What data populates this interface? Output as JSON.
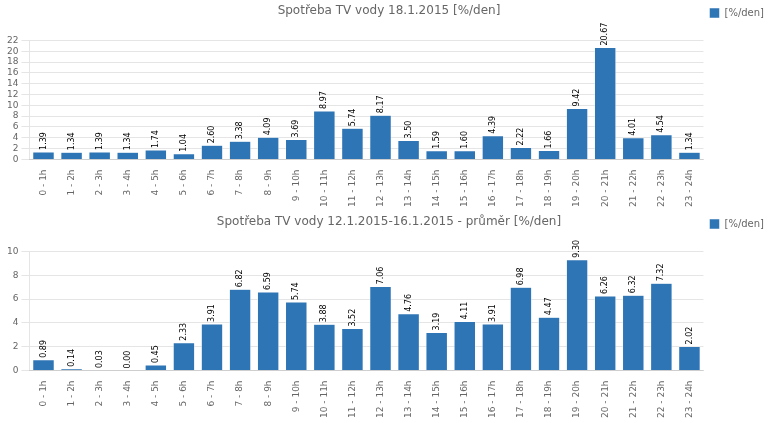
{
  "chart_data": [
    {
      "type": "bar",
      "title": "Spotřeba TV vody 18.1.2015 [%/den]",
      "categories": [
        "0 - 1h",
        "1 - 2h",
        "2 - 3h",
        "3 - 4h",
        "4 - 5h",
        "5 - 6h",
        "6 - 7h",
        "7 - 8h",
        "8 - 9h",
        "9 - 10h",
        "10 - 11h",
        "11 - 12h",
        "12 - 13h",
        "13 - 14h",
        "14 - 15h",
        "15 - 16h",
        "16 - 17h",
        "17 - 18h",
        "18 - 19h",
        "19 - 20h",
        "20 - 21h",
        "21 - 22h",
        "22 - 23h",
        "23 - 24h"
      ],
      "series": [
        {
          "name": "[%/den]",
          "color": "#2E75B6",
          "values": [
            1.39,
            1.34,
            1.39,
            1.34,
            1.74,
            1.04,
            2.6,
            3.38,
            4.09,
            3.69,
            8.97,
            5.74,
            8.17,
            3.5,
            1.59,
            1.6,
            4.39,
            2.22,
            1.66,
            9.42,
            20.67,
            4.01,
            4.54,
            1.34
          ],
          "value_labels": [
            "1.39",
            "1.34",
            "1.39",
            "1.34",
            "1.74",
            "1.04",
            "2.60",
            "3.38",
            "4.09",
            "3.69",
            "8.97",
            "5.74",
            "8.17",
            "3.50",
            "1.59",
            "1.60",
            "4.39",
            "2.22",
            "1.66",
            "9.42",
            "20.67",
            "4.01",
            "4.54",
            "1.34"
          ]
        }
      ],
      "ylim": [
        0,
        22
      ],
      "yticks": [
        0,
        2,
        4,
        6,
        8,
        10,
        12,
        14,
        16,
        18,
        20,
        22
      ],
      "grid": true,
      "legend": "upper right",
      "data_labels": true
    },
    {
      "type": "bar",
      "title": "Spotřeba TV vody 12.1.2015-16.1.2015 - průměr [%/den]",
      "categories": [
        "0 - 1h",
        "1 - 2h",
        "2 - 3h",
        "3 - 4h",
        "4 - 5h",
        "5 - 6h",
        "6 - 7h",
        "7 - 8h",
        "8 - 9h",
        "9 - 10h",
        "10 - 11h",
        "11 - 12h",
        "12 - 13h",
        "13 - 14h",
        "14 - 15h",
        "15 - 16h",
        "16 - 17h",
        "17 - 18h",
        "18 - 19h",
        "19 - 20h",
        "20 - 21h",
        "21 - 22h",
        "22 - 23h",
        "23 - 24h"
      ],
      "series": [
        {
          "name": "[%/den]",
          "color": "#2E75B6",
          "values": [
            0.89,
            0.14,
            0.03,
            0.0,
            0.45,
            2.33,
            3.91,
            6.82,
            6.59,
            5.74,
            3.88,
            3.52,
            7.06,
            4.76,
            3.19,
            4.11,
            3.91,
            6.98,
            4.47,
            9.3,
            6.26,
            6.32,
            7.32,
            2.02
          ],
          "value_labels": [
            "0.89",
            "0.14",
            "0.03",
            "0.00",
            "0.45",
            "2.33",
            "3.91",
            "6.82",
            "6.59",
            "5.74",
            "3.88",
            "3.52",
            "7.06",
            "4.76",
            "3.19",
            "4.11",
            "3.91",
            "6.98",
            "4.47",
            "9.30",
            "6.26",
            "6.32",
            "7.32",
            "2.02"
          ]
        }
      ],
      "ylim": [
        0,
        10
      ],
      "yticks": [
        0,
        2,
        4,
        6,
        8,
        10
      ],
      "grid": true,
      "legend": "upper right",
      "data_labels": true
    }
  ]
}
